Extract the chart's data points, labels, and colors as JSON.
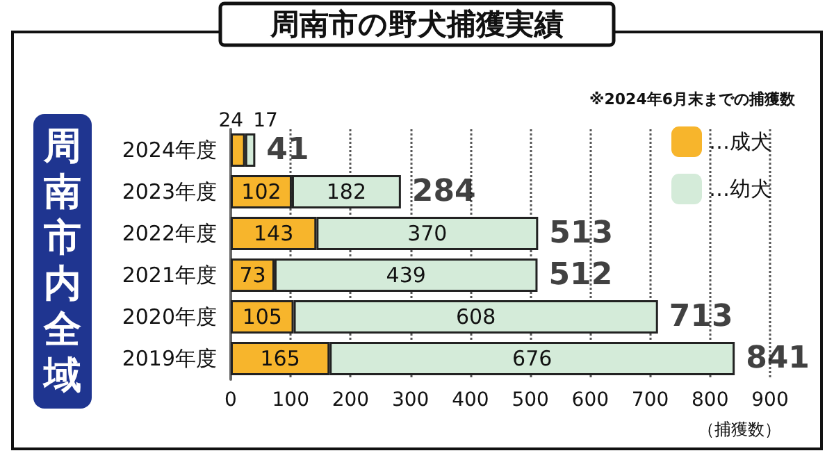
{
  "chart_data": {
    "type": "bar",
    "orientation": "horizontal",
    "stacked": true,
    "title": "周南市の野犬捕獲実績",
    "ylabel": "周南市内全域",
    "xlabel": "（捕獲数）",
    "annotations": [
      "※2024年6月末までの捕獲数"
    ],
    "categories": [
      "2024年度",
      "2023年度",
      "2022年度",
      "2021年度",
      "2020年度",
      "2019年度"
    ],
    "series": [
      {
        "name": "…成犬",
        "color": "#f7b52c",
        "values": [
          24,
          102,
          143,
          73,
          105,
          165
        ]
      },
      {
        "name": "…幼犬",
        "color": "#d4ebd9",
        "values": [
          17,
          182,
          370,
          439,
          608,
          676
        ]
      }
    ],
    "totals": [
      "41",
      "284",
      "513",
      "512",
      "713",
      "841"
    ],
    "data_labels": true,
    "xlim": [
      0,
      900
    ],
    "xticks": [
      0,
      100,
      200,
      300,
      400,
      500,
      600,
      700,
      800,
      900
    ],
    "grid": "x",
    "legend": "top right"
  }
}
